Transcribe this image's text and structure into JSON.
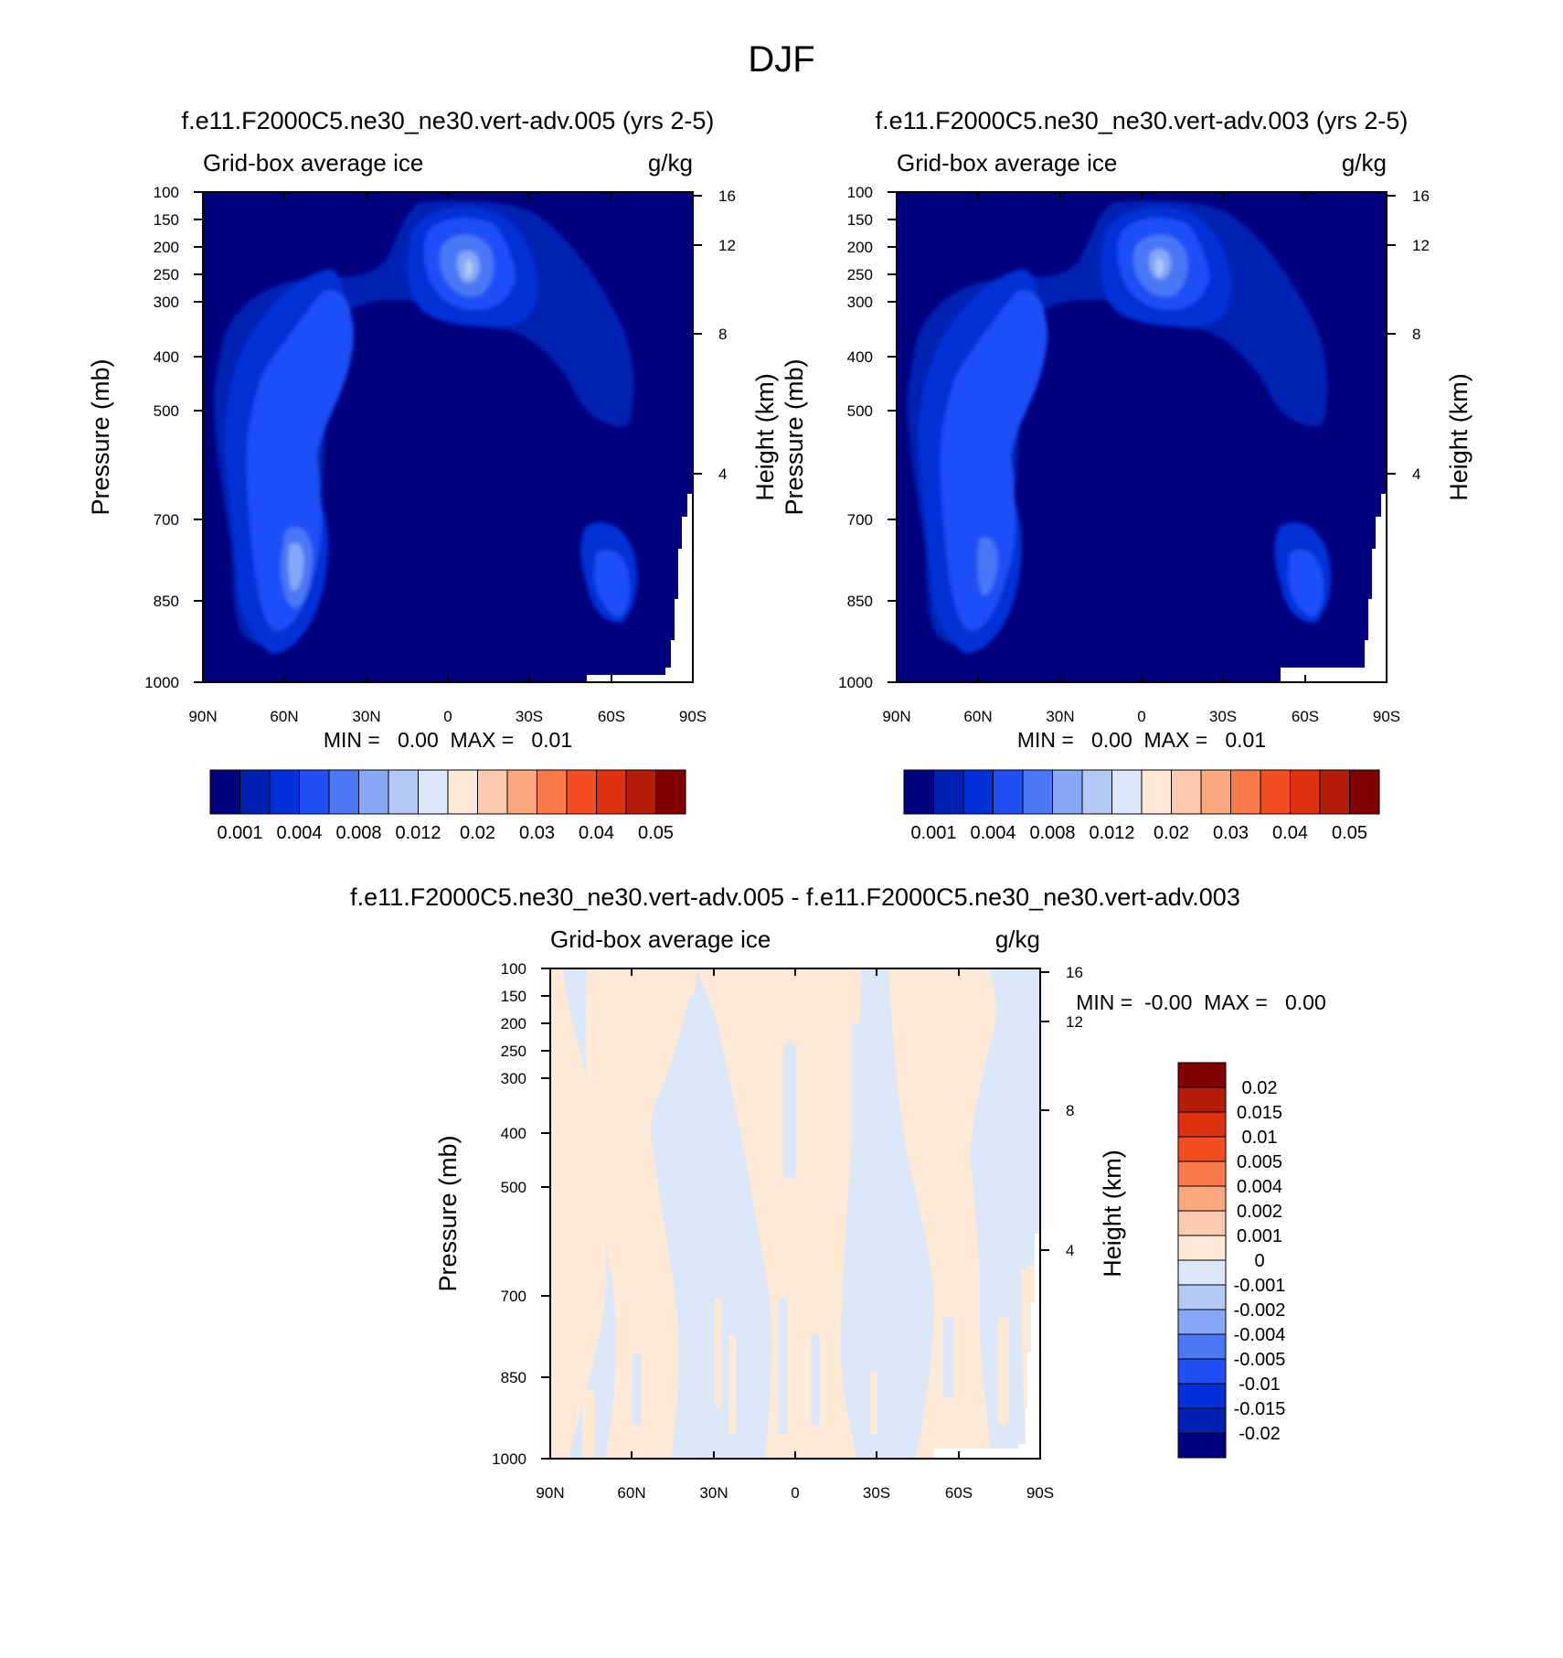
{
  "page_title": "DJF",
  "colors": {
    "ice_levels": [
      "#00007f",
      "#0020b2",
      "#0030d8",
      "#1e50f5",
      "#4a78f7",
      "#86a8f6",
      "#b4c8f6",
      "#dbe8fa",
      "#fde9d6",
      "#fdcab0",
      "#fca77d",
      "#fb7a4a",
      "#f54d22",
      "#e03210",
      "#b41e08",
      "#820000"
    ],
    "diff_levels": [
      "#00007f",
      "#0020b2",
      "#0030d8",
      "#1e50f5",
      "#4a78f7",
      "#86a8f6",
      "#b4c8f6",
      "#dbe8fa",
      "#fde9d6",
      "#fdcab0",
      "#fca77d",
      "#fb7a4a",
      "#f54d22",
      "#e03210",
      "#b41e08",
      "#820000"
    ]
  },
  "chart_data": [
    {
      "type": "heatmap",
      "title": "f.e11.F2000C5.ne30_ne30.vert-adv.005 (yrs 2-5)",
      "left_string": "Grid-box average ice",
      "right_string": "g/kg",
      "ylabel": "Pressure (mb)",
      "ylabel_right": "Height (km)",
      "x_ticks": [
        "90N",
        "60N",
        "30N",
        "0",
        "30S",
        "60S",
        "90S"
      ],
      "y_ticks": [
        "100",
        "150",
        "200",
        "250",
        "300",
        "400",
        "500",
        "700",
        "850",
        "1000"
      ],
      "y_right_ticks": [
        "16",
        "12",
        "8",
        "4"
      ],
      "ylim": [
        1000,
        100
      ],
      "y_scale": "log",
      "stats": "MIN =   0.00  MAX =   0.01",
      "colorbar_labels": [
        "0.001",
        "0.004",
        "0.008",
        "0.012",
        "0.02",
        "0.03",
        "0.04",
        "0.05"
      ]
    },
    {
      "type": "heatmap",
      "title": "f.e11.F2000C5.ne30_ne30.vert-adv.003 (yrs 2-5)",
      "left_string": "Grid-box average ice",
      "right_string": "g/kg",
      "ylabel": "Pressure (mb)",
      "ylabel_right": "Height (km)",
      "x_ticks": [
        "90N",
        "60N",
        "30N",
        "0",
        "30S",
        "60S",
        "90S"
      ],
      "y_ticks": [
        "100",
        "150",
        "200",
        "250",
        "300",
        "400",
        "500",
        "700",
        "850",
        "1000"
      ],
      "y_right_ticks": [
        "16",
        "12",
        "8",
        "4"
      ],
      "ylim": [
        1000,
        100
      ],
      "y_scale": "log",
      "stats": "MIN =   0.00  MAX =   0.01",
      "colorbar_labels": [
        "0.001",
        "0.004",
        "0.008",
        "0.012",
        "0.02",
        "0.03",
        "0.04",
        "0.05"
      ]
    },
    {
      "type": "heatmap",
      "title": "f.e11.F2000C5.ne30_ne30.vert-adv.005 - f.e11.F2000C5.ne30_ne30.vert-adv.003",
      "left_string": "Grid-box average ice",
      "right_string": "g/kg",
      "ylabel": "Pressure (mb)",
      "ylabel_right": "Height (km)",
      "x_ticks": [
        "90N",
        "60N",
        "30N",
        "0",
        "30S",
        "60S",
        "90S"
      ],
      "y_ticks": [
        "100",
        "150",
        "200",
        "250",
        "300",
        "400",
        "500",
        "700",
        "850",
        "1000"
      ],
      "y_right_ticks": [
        "16",
        "12",
        "8",
        "4"
      ],
      "ylim": [
        1000,
        100
      ],
      "y_scale": "log",
      "stats": "MIN =  -0.00  MAX =   0.00",
      "colorbar_labels": [
        "0.02",
        "0.015",
        "0.01",
        "0.005",
        "0.004",
        "0.002",
        "0.001",
        "0",
        "-0.001",
        "-0.002",
        "-0.004",
        "-0.005",
        "-0.01",
        "-0.015",
        "-0.02"
      ]
    }
  ]
}
